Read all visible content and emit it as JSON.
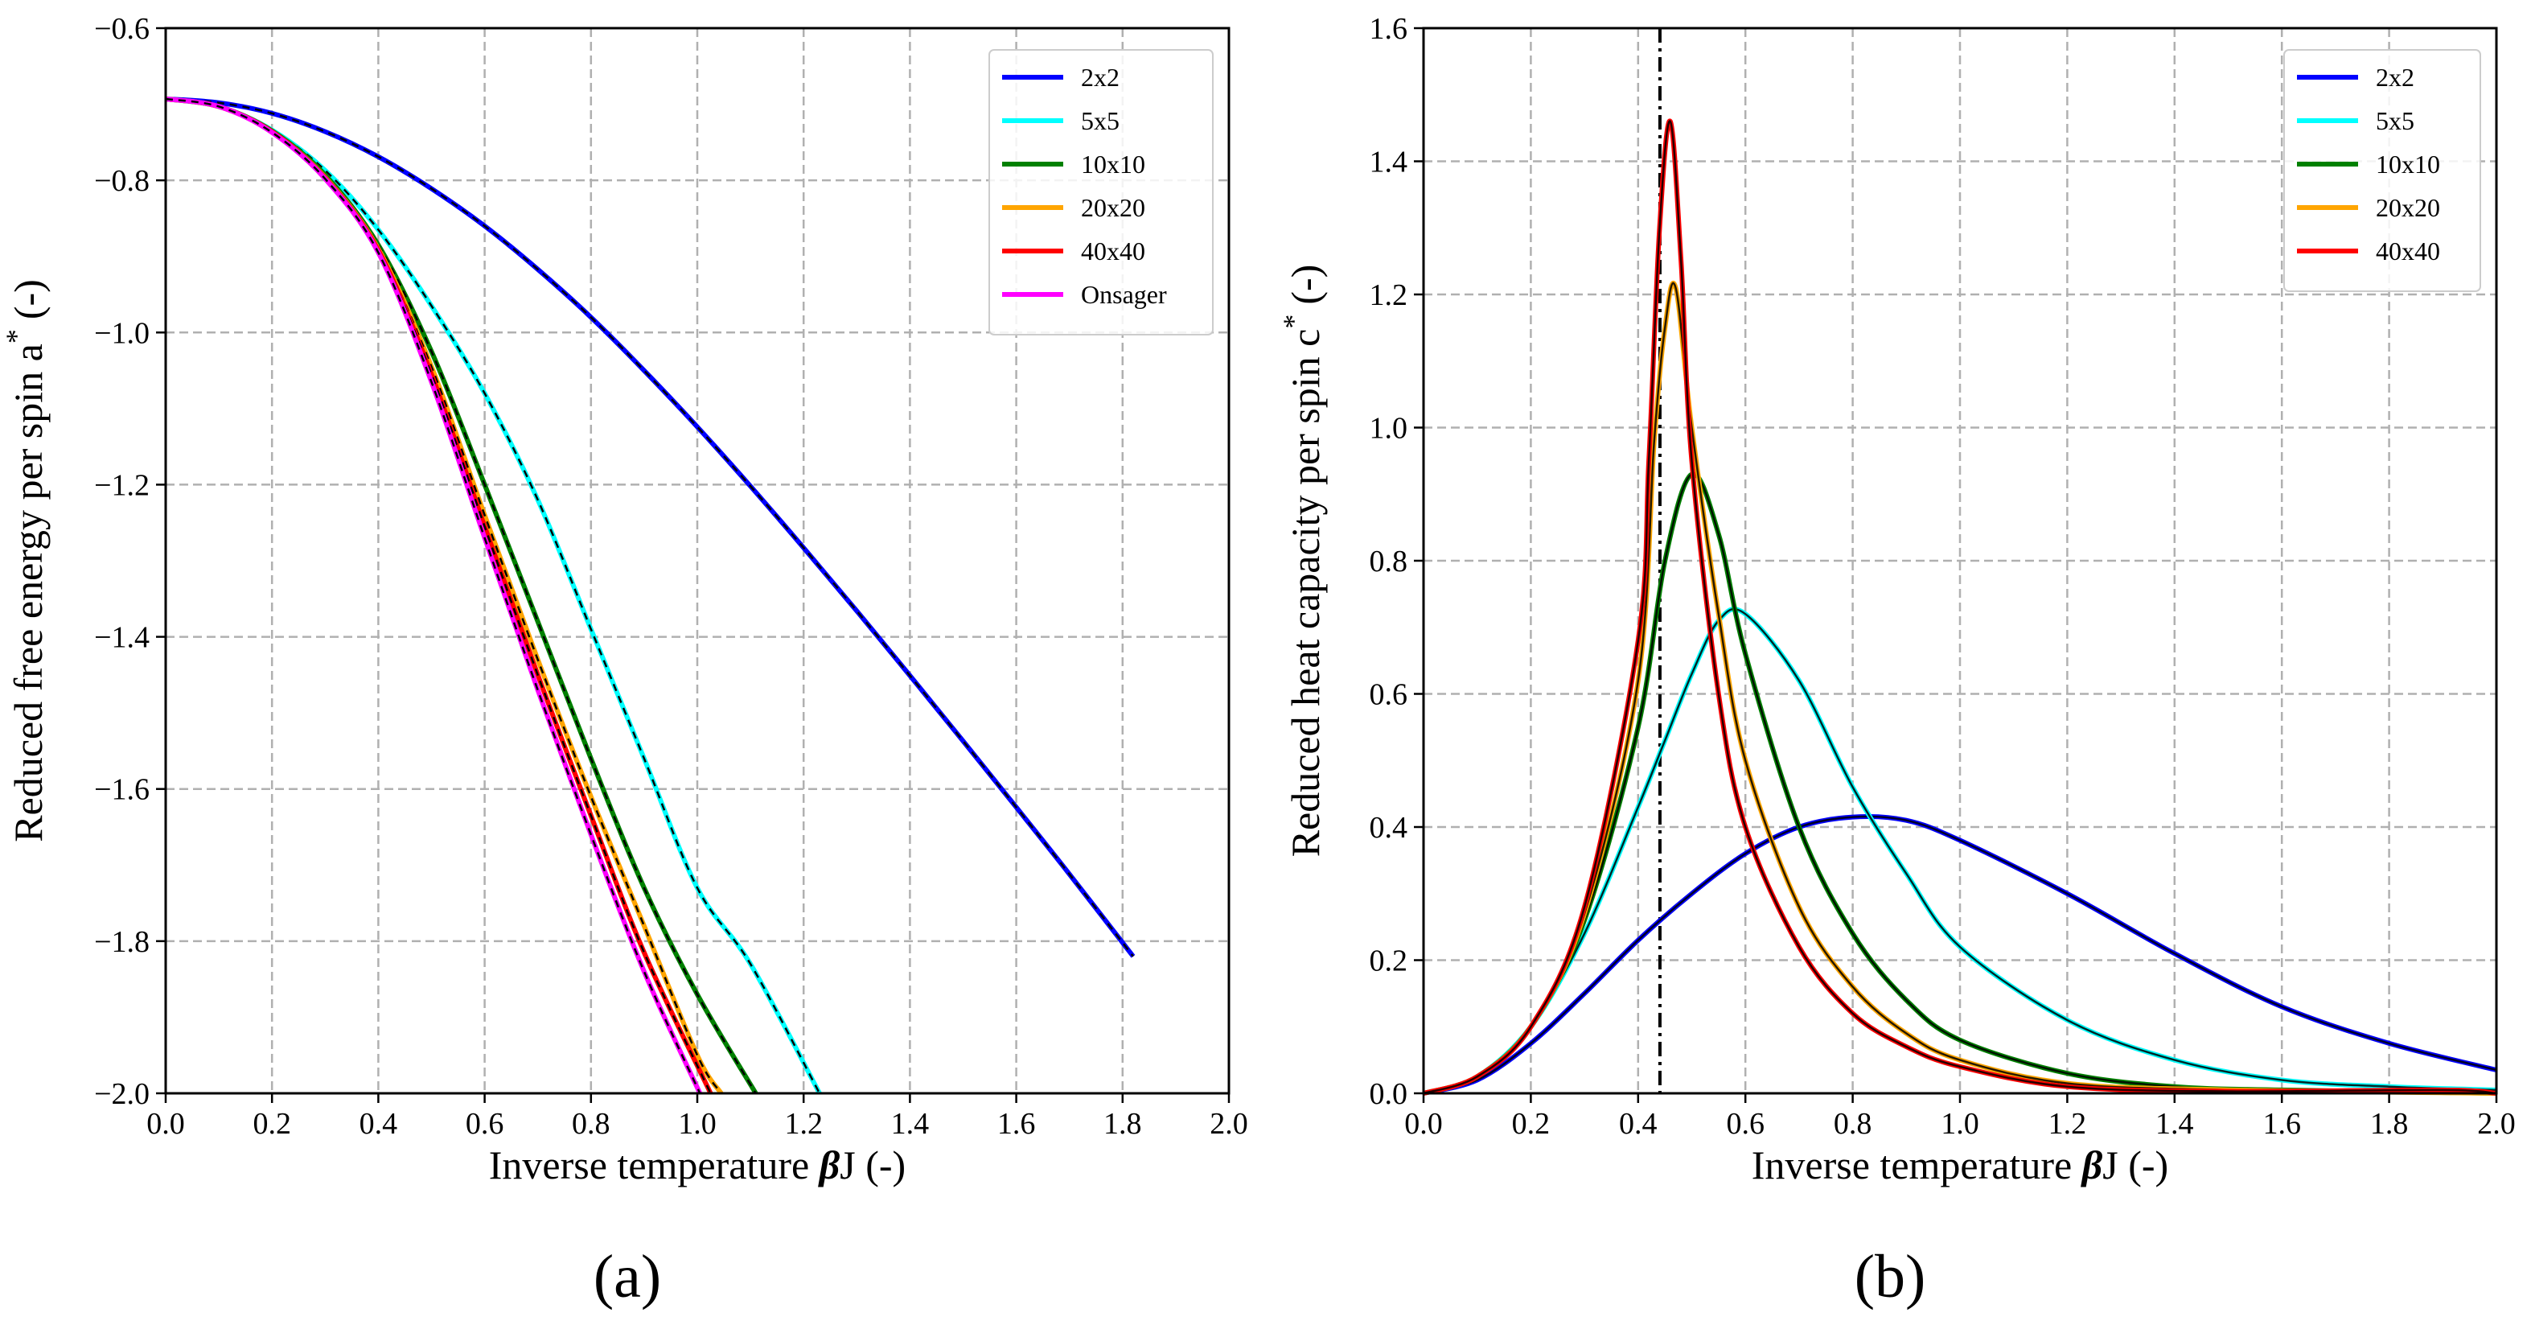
{
  "chart_data": [
    {
      "type": "line",
      "panel_label": "(a)",
      "xlabel_pre": "Inverse temperature ",
      "xlabel_beta": "β",
      "xlabel_post": "J (-)",
      "ylabel_text": "Reduced free energy per spin a",
      "ylabel_sup": "*",
      "ylabel_unit": "(-)",
      "xlim": [
        0,
        2.0
      ],
      "ylim": [
        -2.0,
        -0.6
      ],
      "xticks": [
        "0.0",
        "0.2",
        "0.4",
        "0.6",
        "0.8",
        "1.0",
        "1.2",
        "1.4",
        "1.6",
        "1.8",
        "2.0"
      ],
      "yticks": [
        "−2.0",
        "−1.8",
        "−1.6",
        "−1.4",
        "−1.2",
        "−1.0",
        "−0.8",
        "−0.6"
      ],
      "grid": true,
      "legend_position": "top-right",
      "legend": [
        {
          "label": "2x2",
          "color": "#0000ff"
        },
        {
          "label": "5x5",
          "color": "#00ffff"
        },
        {
          "label": "10x10",
          "color": "#008000"
        },
        {
          "label": "20x20",
          "color": "#ffa500"
        },
        {
          "label": "40x40",
          "color": "#ff0000"
        },
        {
          "label": "Onsager",
          "color": "#ff00ff"
        }
      ],
      "series": [
        {
          "name": "2x2",
          "color": "#0000ff",
          "x": [
            0,
            0.1,
            0.2,
            0.3,
            0.4,
            0.5,
            0.6,
            0.7,
            0.8,
            0.9,
            1.0,
            1.1,
            1.2,
            1.3,
            1.4,
            1.5,
            1.6,
            1.7,
            1.82
          ],
          "y": [
            -0.693,
            -0.698,
            -0.712,
            -0.736,
            -0.769,
            -0.811,
            -0.86,
            -0.917,
            -0.98,
            -1.05,
            -1.124,
            -1.202,
            -1.283,
            -1.366,
            -1.451,
            -1.537,
            -1.624,
            -1.712,
            -1.82
          ]
        },
        {
          "name": "5x5",
          "color": "#00ffff",
          "x": [
            0,
            0.1,
            0.2,
            0.3,
            0.4,
            0.5,
            0.6,
            0.7,
            0.8,
            0.9,
            1.0,
            1.1,
            1.23
          ],
          "y": [
            -0.693,
            -0.703,
            -0.734,
            -0.787,
            -0.865,
            -0.965,
            -1.08,
            -1.22,
            -1.39,
            -1.56,
            -1.73,
            -1.83,
            -2.0
          ]
        },
        {
          "name": "10x10",
          "color": "#008000",
          "x": [
            0,
            0.1,
            0.2,
            0.3,
            0.4,
            0.5,
            0.6,
            0.7,
            0.8,
            0.9,
            1.0,
            1.11
          ],
          "y": [
            -0.693,
            -0.703,
            -0.735,
            -0.793,
            -0.885,
            -1.025,
            -1.2,
            -1.38,
            -1.56,
            -1.73,
            -1.87,
            -2.0
          ]
        },
        {
          "name": "20x20",
          "color": "#ffa500",
          "x": [
            0,
            0.1,
            0.2,
            0.3,
            0.4,
            0.5,
            0.6,
            0.7,
            0.8,
            0.9,
            1.0,
            1.045
          ],
          "y": [
            -0.693,
            -0.703,
            -0.736,
            -0.796,
            -0.89,
            -1.045,
            -1.24,
            -1.43,
            -1.61,
            -1.78,
            -1.95,
            -2.0
          ]
        },
        {
          "name": "40x40",
          "color": "#ff0000",
          "x": [
            0,
            0.1,
            0.2,
            0.3,
            0.4,
            0.5,
            0.6,
            0.7,
            0.8,
            0.9,
            1.025
          ],
          "y": [
            -0.693,
            -0.703,
            -0.736,
            -0.797,
            -0.892,
            -1.055,
            -1.255,
            -1.45,
            -1.635,
            -1.815,
            -2.0
          ]
        },
        {
          "name": "Onsager",
          "color": "#ff00ff",
          "x": [
            0,
            0.1,
            0.2,
            0.3,
            0.4,
            0.5,
            0.6,
            0.7,
            0.8,
            0.9,
            1.005
          ],
          "y": [
            -0.693,
            -0.703,
            -0.737,
            -0.798,
            -0.895,
            -1.065,
            -1.27,
            -1.47,
            -1.66,
            -1.84,
            -2.0
          ]
        }
      ]
    },
    {
      "type": "line",
      "panel_label": "(b)",
      "xlabel_pre": "Inverse temperature ",
      "xlabel_beta": "β",
      "xlabel_post": "J (-)",
      "ylabel_text": "Reduced heat capacity per spin c",
      "ylabel_sup": "*",
      "ylabel_unit": "(-)",
      "xlim": [
        0,
        2.0
      ],
      "ylim": [
        0,
        1.6
      ],
      "xticks": [
        "0.0",
        "0.2",
        "0.4",
        "0.6",
        "0.8",
        "1.0",
        "1.2",
        "1.4",
        "1.6",
        "1.8",
        "2.0"
      ],
      "yticks": [
        "0.0",
        "0.2",
        "0.4",
        "0.6",
        "0.8",
        "1.0",
        "1.2",
        "1.4",
        "1.6"
      ],
      "grid": true,
      "legend_position": "top-right",
      "critical_beta": 0.4407,
      "legend": [
        {
          "label": "2x2",
          "color": "#0000ff"
        },
        {
          "label": "5x5",
          "color": "#00ffff"
        },
        {
          "label": "10x10",
          "color": "#008000"
        },
        {
          "label": "20x20",
          "color": "#ffa500"
        },
        {
          "label": "40x40",
          "color": "#ff0000"
        }
      ],
      "series": [
        {
          "name": "2x2",
          "color": "#0000ff",
          "x": [
            0,
            0.1,
            0.2,
            0.3,
            0.4,
            0.5,
            0.6,
            0.7,
            0.8,
            0.9,
            1.0,
            1.2,
            1.4,
            1.6,
            1.8,
            2.0
          ],
          "y": [
            0,
            0.02,
            0.075,
            0.15,
            0.23,
            0.3,
            0.36,
            0.4,
            0.415,
            0.41,
            0.38,
            0.3,
            0.21,
            0.13,
            0.075,
            0.035
          ]
        },
        {
          "name": "5x5",
          "color": "#00ffff",
          "x": [
            0,
            0.1,
            0.2,
            0.3,
            0.4,
            0.45,
            0.5,
            0.55,
            0.6,
            0.7,
            0.8,
            0.9,
            1.0,
            1.2,
            1.4,
            1.6,
            1.8,
            2.0
          ],
          "y": [
            0,
            0.025,
            0.1,
            0.24,
            0.43,
            0.53,
            0.63,
            0.71,
            0.72,
            0.62,
            0.46,
            0.33,
            0.22,
            0.11,
            0.05,
            0.02,
            0.01,
            0.005
          ]
        },
        {
          "name": "10x10",
          "color": "#008000",
          "x": [
            0,
            0.1,
            0.2,
            0.3,
            0.4,
            0.45,
            0.5,
            0.55,
            0.6,
            0.7,
            0.8,
            0.9,
            1.0,
            1.2,
            1.4,
            1.6,
            2.0
          ],
          "y": [
            0,
            0.025,
            0.1,
            0.26,
            0.55,
            0.8,
            0.93,
            0.84,
            0.66,
            0.4,
            0.24,
            0.14,
            0.08,
            0.03,
            0.01,
            0.005,
            0
          ]
        },
        {
          "name": "20x20",
          "color": "#ffa500",
          "x": [
            0,
            0.1,
            0.2,
            0.3,
            0.4,
            0.43,
            0.45,
            0.47,
            0.5,
            0.55,
            0.6,
            0.7,
            0.8,
            0.9,
            1.0,
            1.2,
            1.5,
            2.0
          ],
          "y": [
            0,
            0.025,
            0.1,
            0.27,
            0.62,
            0.98,
            1.15,
            1.21,
            1.0,
            0.72,
            0.5,
            0.28,
            0.16,
            0.09,
            0.05,
            0.015,
            0.005,
            0
          ]
        },
        {
          "name": "40x40",
          "color": "#ff0000",
          "x": [
            0,
            0.1,
            0.2,
            0.3,
            0.4,
            0.42,
            0.44,
            0.46,
            0.48,
            0.5,
            0.55,
            0.6,
            0.7,
            0.8,
            0.9,
            1.0,
            1.2,
            1.5,
            1.9,
            2.0
          ],
          "y": [
            0,
            0.025,
            0.1,
            0.28,
            0.68,
            0.95,
            1.3,
            1.46,
            1.25,
            0.95,
            0.6,
            0.4,
            0.22,
            0.12,
            0.07,
            0.04,
            0.01,
            0.003,
            0.005,
            0
          ]
        }
      ]
    }
  ]
}
